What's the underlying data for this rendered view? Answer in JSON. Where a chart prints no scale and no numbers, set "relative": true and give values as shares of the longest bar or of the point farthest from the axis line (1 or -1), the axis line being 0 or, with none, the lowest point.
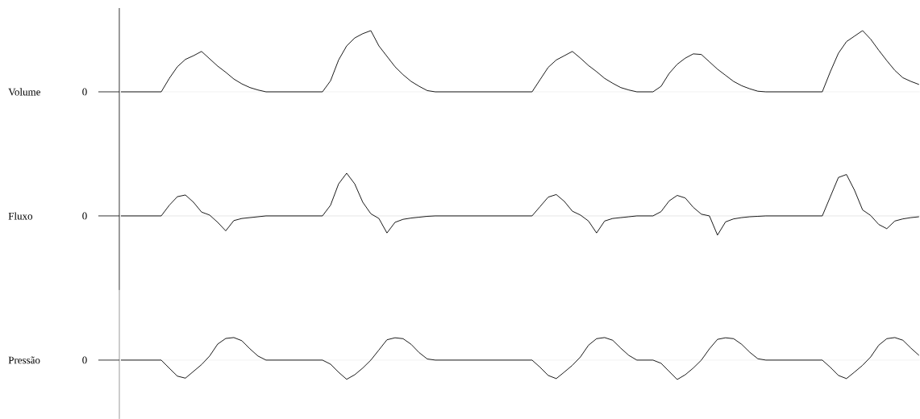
{
  "chart_data": [
    {
      "type": "line",
      "relative": true,
      "ylabel": "Volume",
      "annotations": [
        "0"
      ],
      "categories": [
        null,
        null,
        null,
        null,
        null,
        null,
        null,
        null,
        null,
        null,
        null,
        null,
        null,
        null,
        null,
        null,
        null,
        null,
        null,
        null,
        null,
        null,
        null,
        null,
        null,
        null,
        null,
        null,
        null,
        null,
        null,
        null,
        null,
        null,
        null,
        null,
        null,
        null,
        null,
        null,
        null,
        null,
        null,
        null,
        null,
        null,
        null,
        null,
        null,
        null,
        null,
        null,
        null,
        null,
        null,
        null,
        null,
        null,
        null,
        null,
        null,
        null,
        null,
        null,
        null,
        null,
        null,
        null,
        null,
        null,
        null,
        null,
        null,
        null,
        null,
        null,
        null,
        null,
        null,
        null,
        null,
        null,
        null,
        null,
        null,
        null,
        null,
        null,
        null,
        null,
        null,
        null,
        null,
        null,
        null,
        null,
        null,
        null,
        null,
        null
      ],
      "series": [
        {
          "color": "#000000",
          "values": [
            0,
            0,
            0,
            0,
            0,
            0,
            0.22,
            0.41,
            0.53,
            0.59,
            0.66,
            0.54,
            0.42,
            0.32,
            0.21,
            0.13,
            0.07,
            0.03,
            0,
            0,
            0,
            0,
            0,
            0,
            0,
            0,
            0.18,
            0.52,
            0.75,
            0.88,
            0.95,
            1.0,
            0.75,
            0.58,
            0.41,
            0.28,
            0.17,
            0.09,
            0.02,
            0,
            0,
            0,
            0,
            0,
            0,
            0,
            0,
            0,
            0,
            0,
            0,
            0,
            0.2,
            0.4,
            0.52,
            0.59,
            0.66,
            0.55,
            0.43,
            0.33,
            0.22,
            0.14,
            0.07,
            0.03,
            0,
            0,
            0,
            0.09,
            0.3,
            0.45,
            0.55,
            0.62,
            0.61,
            0.49,
            0.37,
            0.27,
            0.17,
            0.1,
            0.05,
            0.01,
            0,
            0,
            0,
            0,
            0,
            0,
            0,
            0,
            0.33,
            0.63,
            0.82,
            0.91,
            1.0,
            0.86,
            0.68,
            0.51,
            0.35,
            0.23,
            0.17,
            0.12
          ]
        }
      ]
    },
    {
      "type": "line",
      "relative": true,
      "ylabel": "Fluxo",
      "annotations": [
        "0"
      ],
      "categories": [
        null,
        null,
        null,
        null,
        null,
        null,
        null,
        null,
        null,
        null,
        null,
        null,
        null,
        null,
        null,
        null,
        null,
        null,
        null,
        null,
        null,
        null,
        null,
        null,
        null,
        null,
        null,
        null,
        null,
        null,
        null,
        null,
        null,
        null,
        null,
        null,
        null,
        null,
        null,
        null,
        null,
        null,
        null,
        null,
        null,
        null,
        null,
        null,
        null,
        null,
        null,
        null,
        null,
        null,
        null,
        null,
        null,
        null,
        null,
        null,
        null,
        null,
        null,
        null,
        null,
        null,
        null,
        null,
        null,
        null,
        null,
        null,
        null,
        null,
        null,
        null,
        null,
        null,
        null,
        null,
        null,
        null,
        null,
        null,
        null,
        null,
        null,
        null,
        null,
        null,
        null,
        null,
        null,
        null,
        null,
        null,
        null,
        null,
        null,
        null
      ],
      "series": [
        {
          "color": "#000000",
          "values": [
            0,
            0,
            0,
            0,
            0,
            0,
            0.25,
            0.45,
            0.49,
            0.32,
            0.09,
            0.02,
            -0.15,
            -0.35,
            -0.11,
            -0.06,
            -0.04,
            -0.02,
            0,
            0,
            0,
            0,
            0,
            0,
            0,
            0,
            0.25,
            0.75,
            1.0,
            0.75,
            0.32,
            0.05,
            -0.06,
            -0.4,
            -0.15,
            -0.08,
            -0.05,
            -0.03,
            -0.01,
            0,
            0,
            0,
            0,
            0,
            0,
            0,
            0,
            0,
            0,
            0,
            0,
            0,
            0.22,
            0.44,
            0.5,
            0.34,
            0.11,
            0.02,
            -0.12,
            -0.4,
            -0.12,
            -0.06,
            -0.04,
            -0.02,
            0,
            0,
            0,
            0.1,
            0.35,
            0.48,
            0.42,
            0.2,
            0.04,
            0,
            -0.45,
            -0.14,
            -0.07,
            -0.04,
            -0.02,
            -0.01,
            0,
            0,
            0,
            0,
            0,
            0,
            0,
            0,
            0.45,
            0.9,
            0.97,
            0.6,
            0.14,
            0.01,
            -0.2,
            -0.3,
            -0.12,
            -0.07,
            -0.04,
            -0.02
          ]
        }
      ]
    },
    {
      "type": "line",
      "relative": true,
      "ylabel": "Pressão",
      "annotations": [
        "0"
      ],
      "categories": [
        null,
        null,
        null,
        null,
        null,
        null,
        null,
        null,
        null,
        null,
        null,
        null,
        null,
        null,
        null,
        null,
        null,
        null,
        null,
        null,
        null,
        null,
        null,
        null,
        null,
        null,
        null,
        null,
        null,
        null,
        null,
        null,
        null,
        null,
        null,
        null,
        null,
        null,
        null,
        null,
        null,
        null,
        null,
        null,
        null,
        null,
        null,
        null,
        null,
        null,
        null,
        null,
        null,
        null,
        null,
        null,
        null,
        null,
        null,
        null,
        null,
        null,
        null,
        null,
        null,
        null,
        null,
        null,
        null,
        null,
        null,
        null,
        null,
        null,
        null,
        null,
        null,
        null,
        null,
        null,
        null,
        null,
        null,
        null,
        null,
        null,
        null,
        null,
        null,
        null,
        null,
        null,
        null,
        null,
        null,
        null,
        null,
        null,
        null,
        null
      ],
      "series": [
        {
          "color": "#000000",
          "values": [
            0,
            0,
            0,
            0,
            0,
            0,
            -0.36,
            -0.71,
            -0.8,
            -0.5,
            -0.2,
            0.18,
            0.71,
            0.96,
            1.0,
            0.86,
            0.5,
            0.18,
            0,
            0,
            0,
            0,
            0,
            0,
            0,
            0,
            -0.18,
            -0.54,
            -0.85,
            -0.65,
            -0.35,
            0,
            0.45,
            0.9,
            0.99,
            0.95,
            0.7,
            0.33,
            0.05,
            0,
            0,
            0,
            0,
            0,
            0,
            0,
            0,
            0,
            0,
            0,
            0,
            0,
            -0.32,
            -0.68,
            -0.82,
            -0.53,
            -0.23,
            0.14,
            0.66,
            0.95,
            1.0,
            0.88,
            0.53,
            0.21,
            0,
            0,
            0,
            -0.14,
            -0.5,
            -0.86,
            -0.65,
            -0.35,
            0,
            0.5,
            0.92,
            0.99,
            0.95,
            0.7,
            0.35,
            0.06,
            0,
            0,
            0,
            0,
            0,
            0,
            0,
            0,
            -0.32,
            -0.68,
            -0.82,
            -0.53,
            -0.23,
            0.14,
            0.66,
            0.95,
            1.0,
            0.88,
            0.53,
            0.21
          ]
        }
      ]
    }
  ]
}
